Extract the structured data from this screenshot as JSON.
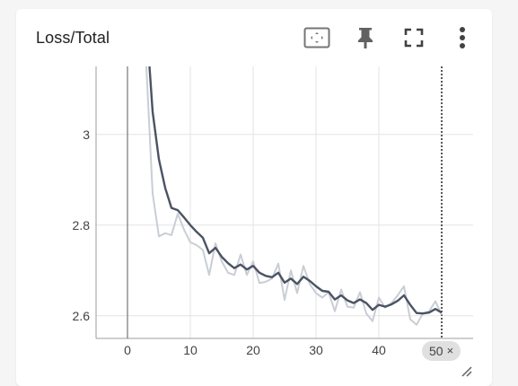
{
  "card": {
    "title": "Loss/Total",
    "toolbar": {
      "fit_icon": "fit-domain-icon",
      "pin_icon": "pin-icon",
      "fullscreen_icon": "fullscreen-icon",
      "menu_icon": "more-vert-icon"
    },
    "step_badge": {
      "label": "50",
      "close": "×"
    }
  },
  "colors": {
    "smoothed": "#4a5363",
    "raw": "#c9ced5",
    "grid": "#e3e3e3",
    "axis": "#9e9e9e",
    "tick_text": "#424242"
  },
  "chart_data": {
    "type": "line",
    "title": "Loss/Total",
    "xlim": [
      -5,
      55
    ],
    "ylim": [
      2.55,
      3.15
    ],
    "x_ticks": [
      0,
      10,
      20,
      30,
      40
    ],
    "y_ticks": [
      2.6,
      2.8,
      3
    ],
    "y_tick_labels": [
      "2.6",
      "2.8",
      "3"
    ],
    "cursor_x": 50,
    "grid": true,
    "series": [
      {
        "role": "raw",
        "x": [
          3,
          4,
          5,
          6,
          7,
          8,
          9,
          10,
          11,
          12,
          13,
          14,
          15,
          16,
          17,
          18,
          19,
          20,
          21,
          22,
          23,
          24,
          25,
          26,
          27,
          28,
          29,
          30,
          31,
          32,
          33,
          34,
          35,
          36,
          37,
          38,
          39,
          40,
          41,
          42,
          43,
          44,
          45,
          46,
          47,
          48,
          49,
          50
        ],
        "y": [
          3.15,
          2.87,
          2.775,
          2.782,
          2.778,
          2.825,
          2.79,
          2.762,
          2.756,
          2.745,
          2.69,
          2.76,
          2.72,
          2.695,
          2.69,
          2.735,
          2.69,
          2.72,
          2.672,
          2.675,
          2.682,
          2.715,
          2.635,
          2.7,
          2.65,
          2.71,
          2.67,
          2.65,
          2.64,
          2.652,
          2.61,
          2.658,
          2.62,
          2.618,
          2.652,
          2.605,
          2.588,
          2.64,
          2.618,
          2.628,
          2.645,
          2.665,
          2.592,
          2.58,
          2.605,
          2.61,
          2.632,
          2.602
        ]
      },
      {
        "role": "smoothed",
        "x": [
          3.5,
          4,
          5,
          6,
          7,
          8,
          9,
          10,
          11,
          12,
          13,
          14,
          15,
          16,
          17,
          18,
          19,
          20,
          21,
          22,
          23,
          24,
          25,
          26,
          27,
          28,
          29,
          30,
          31,
          32,
          33,
          34,
          35,
          36,
          37,
          38,
          39,
          40,
          41,
          42,
          43,
          44,
          45,
          46,
          47,
          48,
          49,
          50
        ],
        "y": [
          3.15,
          3.05,
          2.945,
          2.882,
          2.838,
          2.833,
          2.817,
          2.8,
          2.785,
          2.772,
          2.738,
          2.75,
          2.73,
          2.716,
          2.705,
          2.713,
          2.702,
          2.71,
          2.695,
          2.688,
          2.685,
          2.695,
          2.673,
          2.682,
          2.67,
          2.686,
          2.677,
          2.665,
          2.655,
          2.653,
          2.636,
          2.645,
          2.634,
          2.628,
          2.636,
          2.628,
          2.613,
          2.624,
          2.62,
          2.625,
          2.633,
          2.645,
          2.624,
          2.606,
          2.605,
          2.607,
          2.615,
          2.607
        ]
      }
    ]
  }
}
